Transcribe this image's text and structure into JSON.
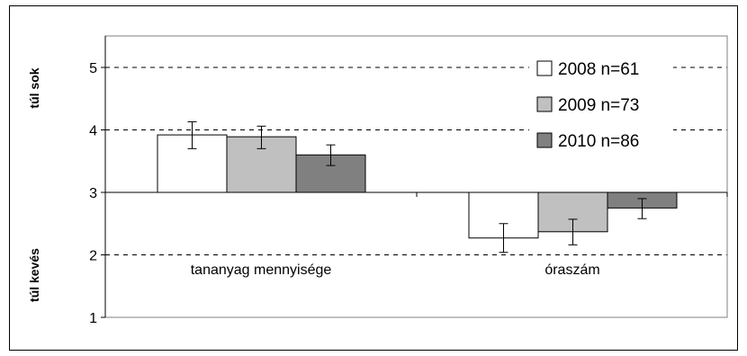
{
  "chart_data": {
    "type": "bar",
    "baseline": 3,
    "ylim": [
      1,
      5.5
    ],
    "yticks": [
      1,
      2,
      3,
      4,
      5
    ],
    "grid": "dashed horizontal at 2, 4, 5",
    "legend_placement": "top-right",
    "ylabel_top": "túl sok",
    "ylabel_bottom": "túl kevés",
    "categories": [
      "tananyag mennyisége",
      "óraszám"
    ],
    "series": [
      {
        "name": "2008 n=61",
        "color": "#ffffff",
        "values": [
          3.92,
          2.27
        ],
        "error_low": [
          3.7,
          2.04
        ],
        "error_high": [
          4.13,
          2.5
        ]
      },
      {
        "name": "2009 n=73",
        "color": "#c0c0c0",
        "values": [
          3.89,
          2.37
        ],
        "error_low": [
          3.7,
          2.16
        ],
        "error_high": [
          4.06,
          2.57
        ]
      },
      {
        "name": "2010 n=86",
        "color": "#808080",
        "values": [
          3.6,
          2.75
        ],
        "error_low": [
          3.43,
          2.58
        ],
        "error_high": [
          3.76,
          2.9
        ]
      }
    ]
  }
}
